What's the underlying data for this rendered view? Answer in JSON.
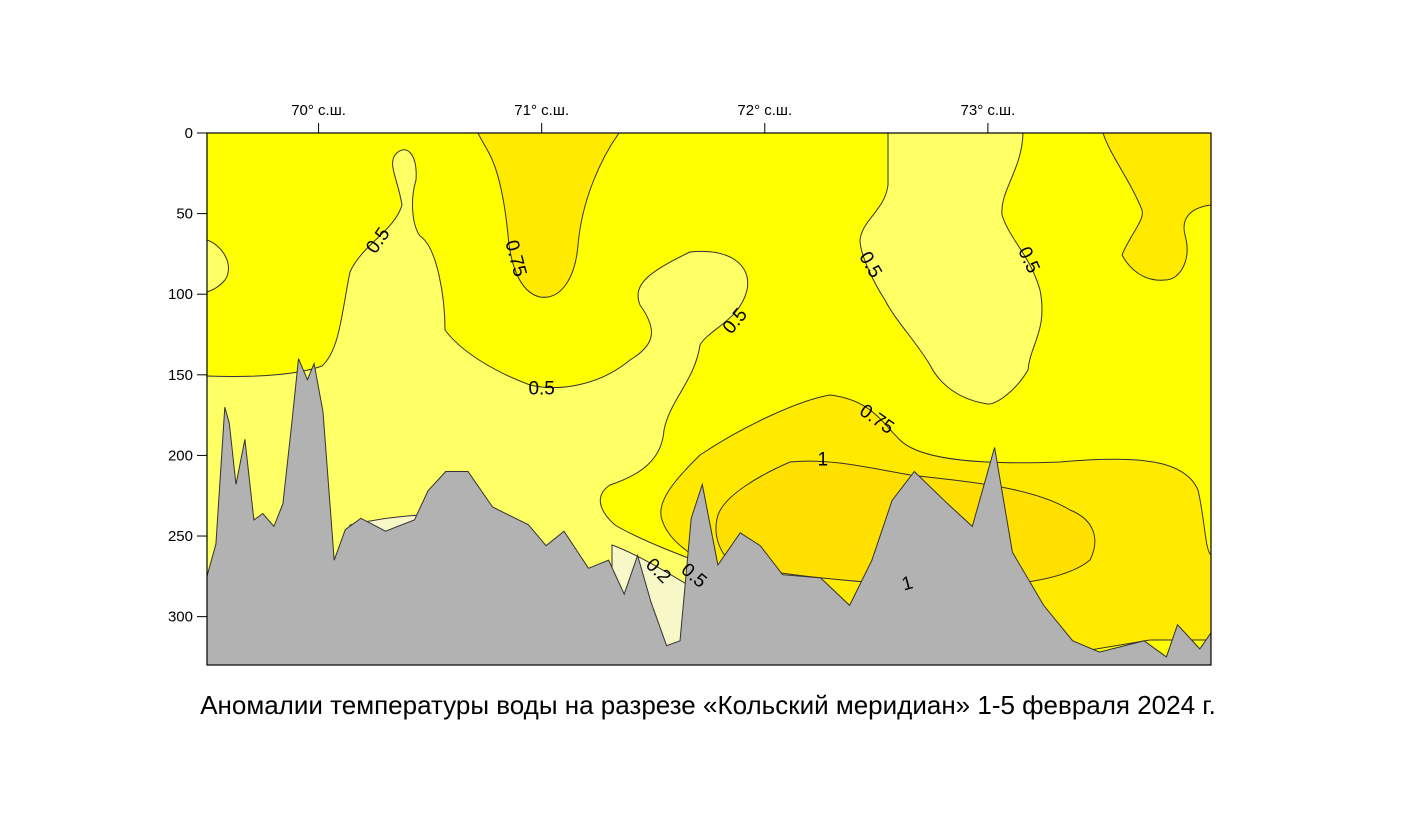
{
  "caption": "Аномалии температуры воды на разрезе «Кольский меридиан» 1-5 февраля 2024 г.",
  "chart_data": {
    "type": "contour",
    "title": "Аномалии температуры воды на разрезе «Кольский меридиан» 1-5 февраля 2024 г.",
    "x_axis": {
      "position": "top",
      "ticks": [
        {
          "value": 70,
          "label": "70° с.ш."
        },
        {
          "value": 71,
          "label": "71° с.ш."
        },
        {
          "value": 72,
          "label": "72° с.ш."
        },
        {
          "value": 73,
          "label": "73° с.ш."
        }
      ],
      "range": [
        69.5,
        74.0
      ]
    },
    "y_axis": {
      "inverted": true,
      "ticks": [
        0,
        50,
        100,
        150,
        200,
        250,
        300
      ],
      "range": [
        0,
        330
      ]
    },
    "contour_levels": [
      0.2,
      0.5,
      0.75,
      1
    ],
    "contour_labels": [
      {
        "text": "0.5",
        "x": 70.27,
        "y": 67
      },
      {
        "text": "0.75",
        "x": 70.88,
        "y": 78
      },
      {
        "text": "0.5",
        "x": 71.0,
        "y": 159
      },
      {
        "text": "0.5",
        "x": 71.87,
        "y": 117
      },
      {
        "text": "0.5",
        "x": 72.47,
        "y": 82
      },
      {
        "text": "0.5",
        "x": 73.18,
        "y": 79
      },
      {
        "text": "0.75",
        "x": 72.5,
        "y": 178
      },
      {
        "text": "1",
        "x": 72.26,
        "y": 203
      },
      {
        "text": "1",
        "x": 72.64,
        "y": 280
      },
      {
        "text": "0.2",
        "x": 71.52,
        "y": 272
      },
      {
        "text": "0.5",
        "x": 71.68,
        "y": 275
      }
    ],
    "bottom_profile": [
      [
        69.5,
        275
      ],
      [
        69.54,
        255
      ],
      [
        69.58,
        170
      ],
      [
        69.6,
        180
      ],
      [
        69.63,
        218
      ],
      [
        69.67,
        190
      ],
      [
        69.71,
        240
      ],
      [
        69.75,
        236
      ],
      [
        69.8,
        244
      ],
      [
        69.84,
        230
      ],
      [
        69.88,
        180
      ],
      [
        69.91,
        140
      ],
      [
        69.95,
        153
      ],
      [
        69.98,
        143
      ],
      [
        70.02,
        173
      ],
      [
        70.07,
        265
      ],
      [
        70.12,
        246
      ],
      [
        70.19,
        239
      ],
      [
        70.3,
        247
      ],
      [
        70.43,
        240
      ],
      [
        70.49,
        222
      ],
      [
        70.57,
        210
      ],
      [
        70.67,
        210
      ],
      [
        70.78,
        232
      ],
      [
        70.94,
        243
      ],
      [
        71.02,
        256
      ],
      [
        71.1,
        247
      ],
      [
        71.21,
        270
      ],
      [
        71.3,
        265
      ],
      [
        71.37,
        286
      ],
      [
        71.43,
        262
      ],
      [
        71.49,
        291
      ],
      [
        71.56,
        318
      ],
      [
        71.62,
        315
      ],
      [
        71.67,
        239
      ],
      [
        71.72,
        218
      ],
      [
        71.79,
        268
      ],
      [
        71.89,
        248
      ],
      [
        71.98,
        256
      ],
      [
        72.08,
        274
      ],
      [
        72.25,
        276
      ],
      [
        72.38,
        293
      ],
      [
        72.48,
        265
      ],
      [
        72.57,
        228
      ],
      [
        72.67,
        210
      ],
      [
        72.82,
        230
      ],
      [
        72.93,
        244
      ],
      [
        73.03,
        195
      ],
      [
        73.11,
        260
      ],
      [
        73.25,
        293
      ],
      [
        73.38,
        315
      ],
      [
        73.5,
        322
      ],
      [
        73.7,
        315
      ],
      [
        73.8,
        325
      ],
      [
        73.85,
        305
      ],
      [
        73.95,
        320
      ],
      [
        74.0,
        310
      ]
    ],
    "fill_colors": {
      "below_0_2": "#f7f7c8",
      "from_0_2_to_0_5": "#ffff66",
      "from_0_5_to_0_75": "#ffff00",
      "from_0_75_to_1": "#ffea00",
      "above_1": "#ffe000",
      "bottom": "#b2b2b2"
    }
  }
}
